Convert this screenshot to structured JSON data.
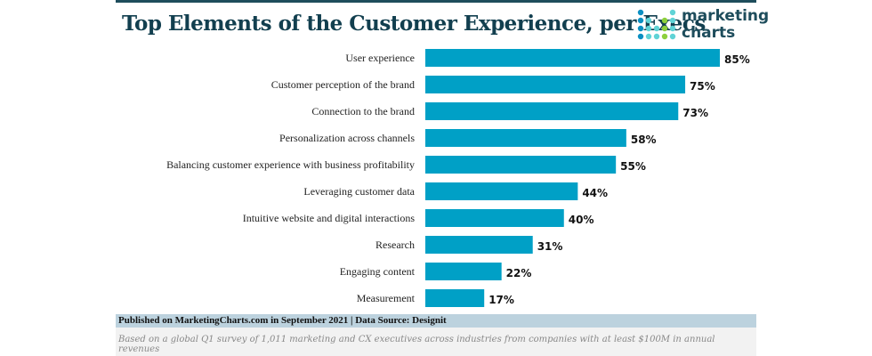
{
  "chart_data": {
    "type": "bar",
    "orientation": "horizontal",
    "title": "Top Elements of the Customer Experience, per Execs",
    "categories": [
      "User experience",
      "Customer perception of the brand",
      "Connection to the brand",
      "Personalization across channels",
      "Balancing customer experience with business profitability",
      "Leveraging customer data",
      "Intuitive website and digital interactions",
      "Research",
      "Engaging content",
      "Measurement"
    ],
    "values": [
      85,
      75,
      73,
      58,
      55,
      44,
      40,
      31,
      22,
      17
    ],
    "value_suffix": "%",
    "bar_color": "#00a0c6",
    "grid": false
  },
  "logo": {
    "line1": "marketing",
    "line2": "charts"
  },
  "footer": {
    "published": "Published on MarketingCharts.com in September 2021 | Data Source: Designit",
    "note": "Based on a global Q1 survey of 1,011 marketing and CX executives across industries from companies with at least $100M in annual revenues"
  }
}
